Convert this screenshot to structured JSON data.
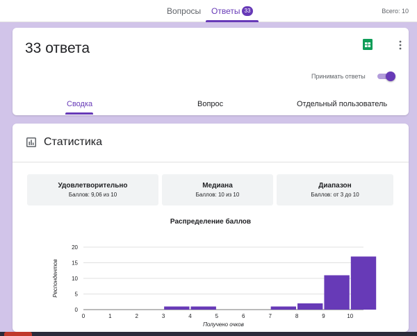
{
  "topbar": {
    "tab_questions": "Вопросы",
    "tab_responses": "Ответы",
    "responses_badge": "33",
    "total": "Всего: 10"
  },
  "responses_card": {
    "title": "33 ответа",
    "accept_label": "Принимать ответы",
    "accept_enabled": true,
    "tabs": {
      "summary": "Сводка",
      "question": "Вопрос",
      "individual": "Отдельный пользователь"
    }
  },
  "stats": {
    "title": "Статистика",
    "boxes": [
      {
        "title": "Удовлетворительно",
        "value": "Баллов: 9,06 из 10"
      },
      {
        "title": "Медиана",
        "value": "Баллов: 10 из 10"
      },
      {
        "title": "Диапазон",
        "value": "Баллов: от 3 до 10"
      }
    ]
  },
  "colors": {
    "accent": "#673ab7",
    "background": "#d1c4e9",
    "bar": "#673ab7"
  },
  "chart_data": {
    "type": "bar",
    "title": "Распределение баллов",
    "xlabel": "Получено очков",
    "ylabel": "Респондентов",
    "categories": [
      "0",
      "1",
      "2",
      "3",
      "4",
      "5",
      "6",
      "7",
      "8",
      "9",
      "10"
    ],
    "values": [
      0,
      0,
      0,
      1,
      1,
      0,
      0,
      1,
      2,
      11,
      17
    ],
    "ylim": [
      0,
      20
    ],
    "yticks": [
      "0",
      "5",
      "10",
      "15",
      "20"
    ],
    "grid": true
  }
}
